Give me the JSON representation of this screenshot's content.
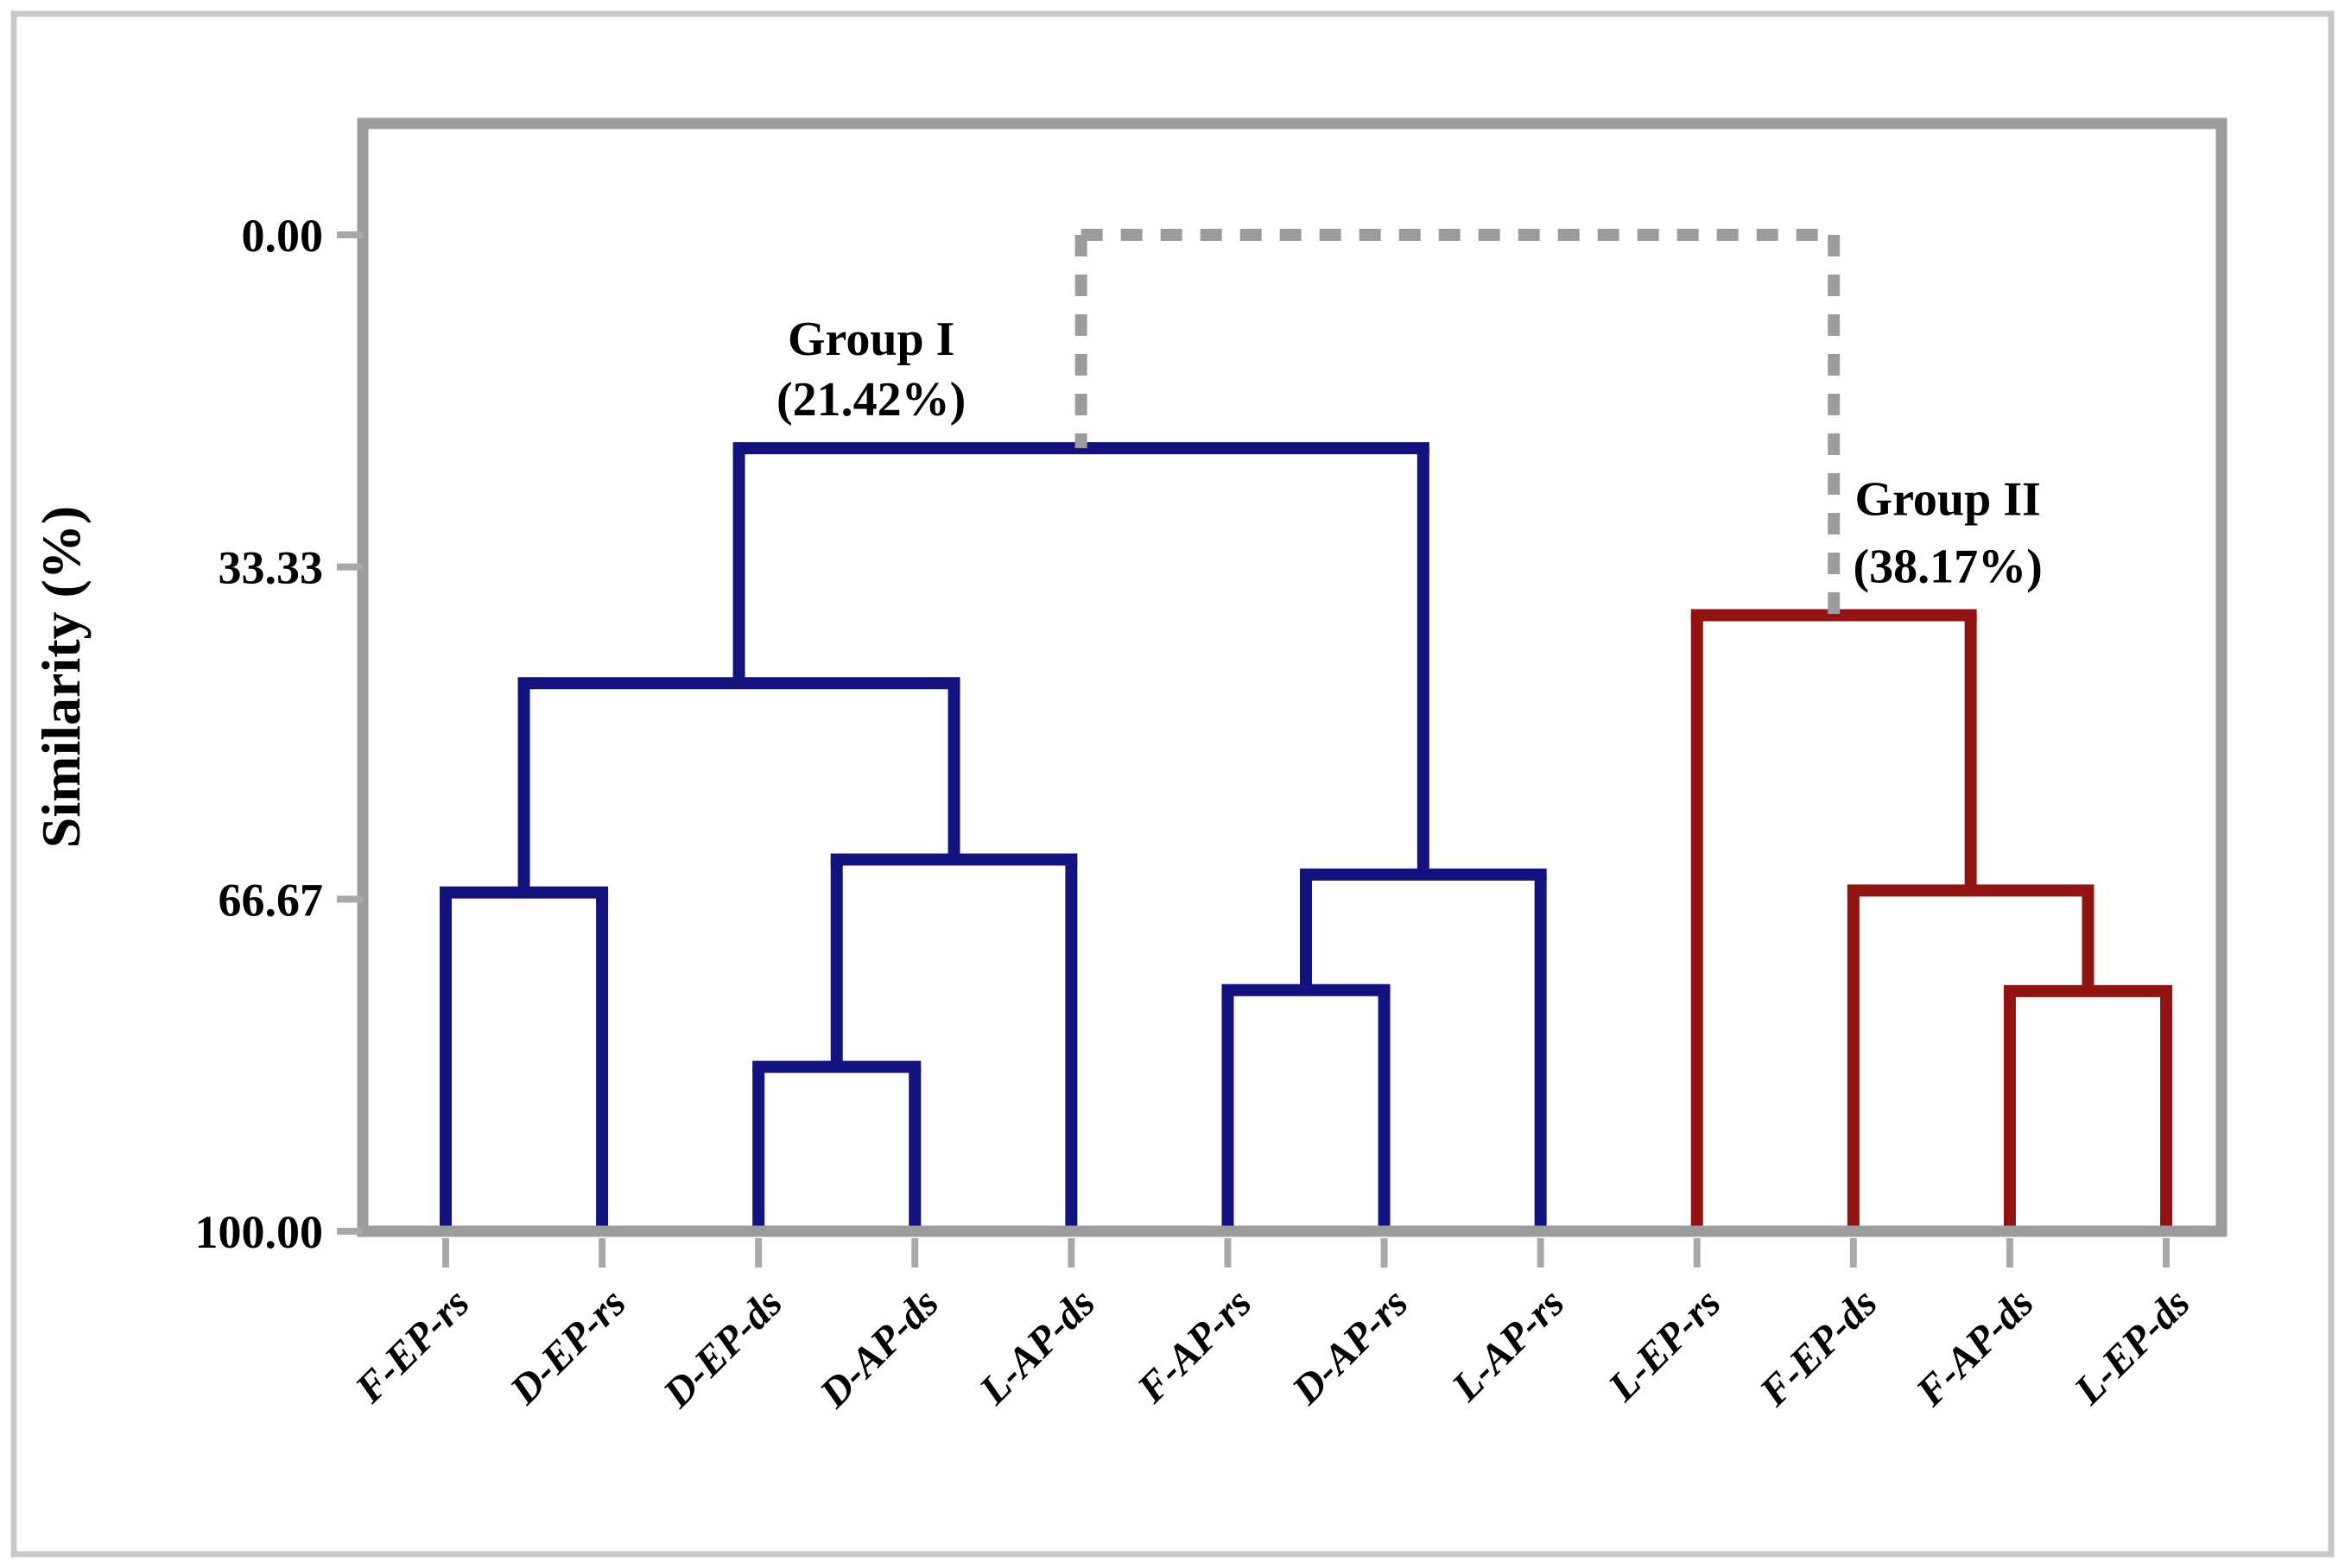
{
  "figure": {
    "background": "#ffffff",
    "outer_border_color": "#c8c8c8",
    "frame_color": "#9c9c9c",
    "tick_color": "#a8a8a8"
  },
  "chart_data": {
    "type": "dendrogram",
    "orientation": "top-down",
    "ylabel": "Similarity (%)",
    "yticks": [
      0,
      33.33,
      66.67,
      100
    ],
    "ytick_labels": [
      "0.00",
      "33.33",
      "66.67",
      "100.00"
    ],
    "yaxis_note": "similarity axis runs 0.00 at top to 100.00 at bottom, linear",
    "grid": false,
    "leaves": [
      "F-EP-rs",
      "D-EP-rs",
      "D-EP-ds",
      "D-AP-ds",
      "L-AP-ds",
      "F-AP-rs",
      "D-AP-rs",
      "L-AP-rs",
      "L-EP-rs",
      "F-EP-ds",
      "F-AP-ds",
      "L-EP-ds"
    ],
    "merges": [
      {
        "id": "m1",
        "children": [
          "D-EP-ds",
          "D-AP-ds"
        ],
        "similarity": 83.5,
        "color": "#131380",
        "style": "solid"
      },
      {
        "id": "m2",
        "children": [
          "m1",
          "L-AP-ds"
        ],
        "similarity": 62.7,
        "color": "#131380",
        "style": "solid"
      },
      {
        "id": "m3",
        "children": [
          "F-EP-rs",
          "D-EP-rs"
        ],
        "similarity": 66.0,
        "color": "#131380",
        "style": "solid"
      },
      {
        "id": "m4",
        "children": [
          "m3",
          "m2"
        ],
        "similarity": 45.0,
        "color": "#131380",
        "style": "solid"
      },
      {
        "id": "m5",
        "children": [
          "F-AP-rs",
          "D-AP-rs"
        ],
        "similarity": 75.8,
        "color": "#131380",
        "style": "solid"
      },
      {
        "id": "m6",
        "children": [
          "m5",
          "L-AP-rs"
        ],
        "similarity": 64.2,
        "color": "#131380",
        "style": "solid"
      },
      {
        "id": "m7",
        "children": [
          "m4",
          "m6"
        ],
        "similarity": 21.42,
        "color": "#131380",
        "style": "solid"
      },
      {
        "id": "m8",
        "children": [
          "F-AP-ds",
          "L-EP-ds"
        ],
        "similarity": 75.9,
        "color": "#911413",
        "style": "solid"
      },
      {
        "id": "m9",
        "children": [
          "F-EP-ds",
          "m8"
        ],
        "similarity": 65.8,
        "color": "#911413",
        "style": "solid"
      },
      {
        "id": "m10",
        "children": [
          "L-EP-rs",
          "m9"
        ],
        "similarity": 38.17,
        "color": "#911413",
        "style": "solid"
      },
      {
        "id": "root",
        "children": [
          "m7",
          "m10"
        ],
        "similarity": 0.0,
        "color": "#9c9c9c",
        "style": "dashed"
      }
    ],
    "group_labels": [
      {
        "text": "Group I",
        "subtext": "(21.42%)",
        "attach": "m7",
        "color": "#131380"
      },
      {
        "text": "Group II",
        "subtext": "(38.17%)",
        "attach": "m10",
        "color": "#911413"
      }
    ],
    "colors": {
      "group1": "#131380",
      "group2": "#911413",
      "dashed_root": "#9c9c9c"
    }
  }
}
